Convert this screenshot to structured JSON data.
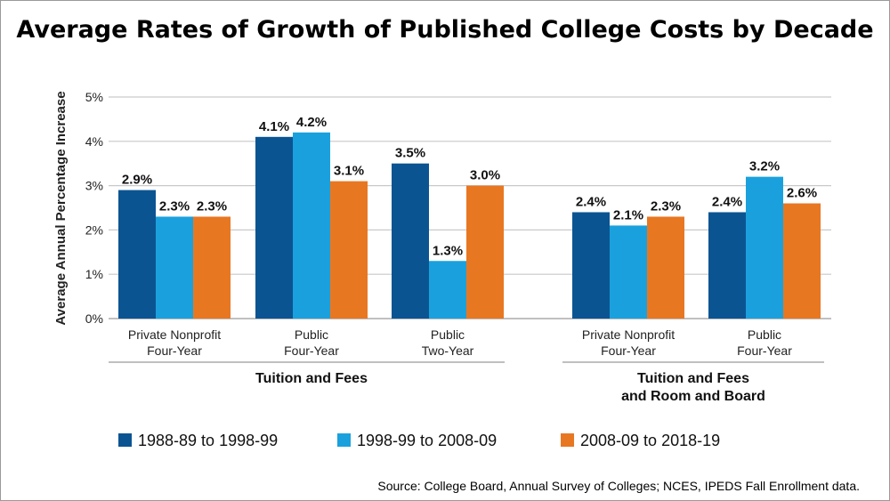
{
  "chart_data": {
    "type": "bar",
    "title": "Average Rates of Growth of Published College Costs by Decade",
    "ylabel": "Average Annual Percentage Increase",
    "ylim": [
      0,
      5
    ],
    "yticks": [
      "0%",
      "1%",
      "2%",
      "3%",
      "4%",
      "5%"
    ],
    "grid": true,
    "legend_position": "bottom",
    "groups": [
      {
        "label": "Tuition and Fees",
        "categories": [
          {
            "label_lines": [
              "Private Nonprofit",
              "Four-Year"
            ],
            "values": [
              2.9,
              2.3,
              2.3
            ],
            "labels": [
              "2.9%",
              "2.3%",
              "2.3%"
            ]
          },
          {
            "label_lines": [
              "Public",
              "Four-Year"
            ],
            "values": [
              4.1,
              4.2,
              3.1
            ],
            "labels": [
              "4.1%",
              "4.2%",
              "3.1%"
            ]
          },
          {
            "label_lines": [
              "Public",
              "Two-Year"
            ],
            "values": [
              3.5,
              1.3,
              3.0
            ],
            "labels": [
              "3.5%",
              "1.3%",
              "3.0%"
            ]
          }
        ]
      },
      {
        "label_lines": [
          "Tuition and Fees",
          "and Room and Board"
        ],
        "categories": [
          {
            "label_lines": [
              "Private Nonprofit",
              "Four-Year"
            ],
            "values": [
              2.4,
              2.1,
              2.3
            ],
            "labels": [
              "2.4%",
              "2.1%",
              "2.3%"
            ]
          },
          {
            "label_lines": [
              "Public",
              "Four-Year"
            ],
            "values": [
              2.4,
              3.2,
              2.6
            ],
            "labels": [
              "2.4%",
              "3.2%",
              "2.6%"
            ]
          }
        ]
      }
    ],
    "series": [
      {
        "name": "1988-89 to 1998-99",
        "color": "#0b5492"
      },
      {
        "name": "1998-99 to 2008-09",
        "color": "#1aa1dd"
      },
      {
        "name": "2008-09 to 2018-19",
        "color": "#e87722"
      }
    ],
    "source": "Source: College Board, Annual Survey of Colleges; NCES, IPEDS Fall Enrollment data."
  }
}
